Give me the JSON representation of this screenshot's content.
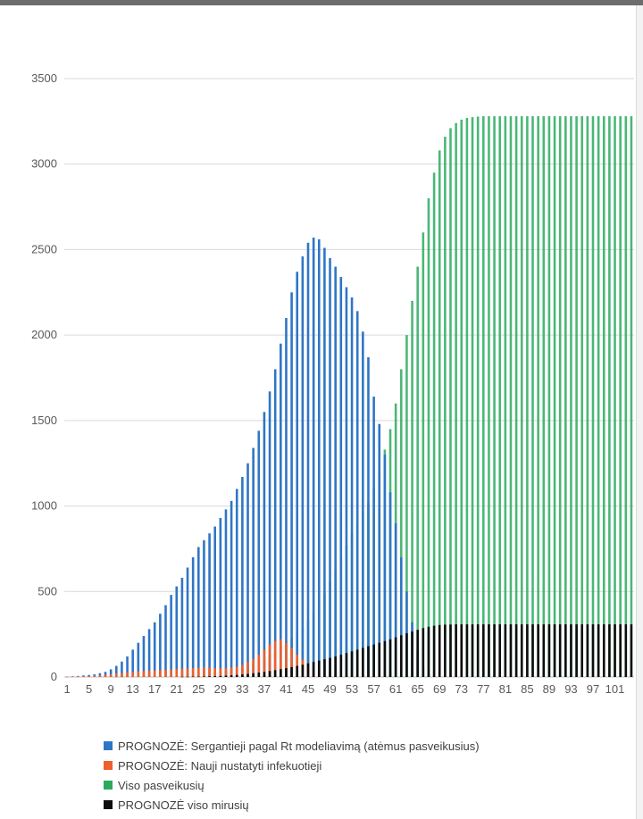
{
  "chart_data": {
    "type": "bar",
    "title": "",
    "xlabel": "",
    "ylabel": "",
    "ylim": [
      0,
      3500
    ],
    "yticks": [
      0,
      500,
      1000,
      1500,
      2000,
      2500,
      3000,
      3500
    ],
    "x_start": 1,
    "x_end": 104,
    "x_tick_labels": [
      "1",
      "5",
      "9",
      "13",
      "17",
      "21",
      "25",
      "29",
      "33",
      "37",
      "41",
      "45",
      "49",
      "53",
      "57",
      "61",
      "65",
      "69",
      "73",
      "77",
      "81",
      "85",
      "89",
      "93",
      "97",
      "101"
    ],
    "grid": true,
    "legend_position": "bottom",
    "series": [
      {
        "name": "PROGNOZĖ: Sergantieji pagal Rt modeliavimą (atėmus pasveikusius)",
        "color": "#2e75c6",
        "values": [
          2,
          4,
          6,
          9,
          12,
          16,
          22,
          30,
          45,
          65,
          90,
          120,
          160,
          200,
          240,
          280,
          320,
          370,
          420,
          480,
          530,
          580,
          640,
          700,
          760,
          800,
          840,
          880,
          930,
          980,
          1030,
          1100,
          1170,
          1250,
          1340,
          1440,
          1550,
          1670,
          1800,
          1950,
          2100,
          2250,
          2370,
          2460,
          2540,
          2570,
          2560,
          2510,
          2450,
          2400,
          2340,
          2280,
          2220,
          2140,
          2020,
          1870,
          1640,
          1480,
          1300,
          1080,
          900,
          700,
          500,
          320,
          160,
          60,
          20,
          5,
          0,
          0
        ]
      },
      {
        "name": "PROGNOZĖ: Nauji nustatyti infekuotieji",
        "color": "#ed5f2e",
        "values": [
          2,
          3,
          4,
          5,
          6,
          8,
          10,
          13,
          16,
          20,
          24,
          28,
          30,
          33,
          35,
          37,
          38,
          40,
          42,
          44,
          46,
          48,
          50,
          52,
          54,
          56,
          55,
          52,
          50,
          52,
          55,
          60,
          70,
          85,
          105,
          130,
          160,
          190,
          210,
          220,
          200,
          170,
          130,
          100,
          80,
          60,
          45,
          35,
          25,
          18,
          12,
          8,
          5,
          3,
          2,
          1,
          1,
          0
        ]
      },
      {
        "name": "Viso pasveikusių",
        "color": "#2aaa5e",
        "values": [
          0,
          0,
          0,
          0,
          0,
          0,
          0,
          0,
          0,
          1,
          1,
          2,
          2,
          3,
          4,
          5,
          6,
          7,
          8,
          10,
          12,
          14,
          16,
          18,
          20,
          22,
          25,
          28,
          32,
          36,
          40,
          45,
          52,
          60,
          72,
          88,
          108,
          130,
          155,
          180,
          205,
          230,
          260,
          290,
          330,
          380,
          430,
          490,
          560,
          630,
          700,
          770,
          840,
          900,
          960,
          1020,
          1100,
          1200,
          1330,
          1450,
          1600,
          1800,
          2000,
          2200,
          2400,
          2600,
          2800,
          2950,
          3080,
          3160,
          3210,
          3240,
          3260,
          3270,
          3275,
          3278,
          3280,
          3280,
          3280,
          3280,
          3280,
          3280,
          3280,
          3280,
          3280,
          3280,
          3280,
          3280,
          3280,
          3280,
          3280,
          3280,
          3280,
          3280,
          3280,
          3280,
          3280,
          3280,
          3280,
          3280,
          3280,
          3280,
          3280,
          3280
        ]
      },
      {
        "name": "PROGNOZĖ viso mirusių",
        "color": "#0d0d0d",
        "values": [
          0,
          0,
          0,
          0,
          0,
          0,
          0,
          0,
          0,
          0,
          0,
          0,
          0,
          0,
          0,
          0,
          0,
          0,
          0,
          0,
          0,
          1,
          1,
          2,
          2,
          3,
          4,
          5,
          6,
          8,
          10,
          12,
          15,
          18,
          22,
          26,
          30,
          35,
          40,
          46,
          52,
          58,
          65,
          72,
          80,
          88,
          96,
          104,
          112,
          120,
          130,
          140,
          150,
          160,
          170,
          180,
          190,
          200,
          210,
          220,
          232,
          244,
          256,
          266,
          276,
          286,
          294,
          300,
          304,
          306,
          307,
          308,
          308,
          308,
          308,
          308,
          308,
          308,
          308,
          308,
          308,
          308,
          308,
          308,
          308,
          308,
          308,
          308,
          308,
          308,
          308,
          308,
          308,
          308,
          308,
          308,
          308,
          308,
          308,
          308,
          308,
          308,
          308,
          308
        ]
      }
    ]
  }
}
